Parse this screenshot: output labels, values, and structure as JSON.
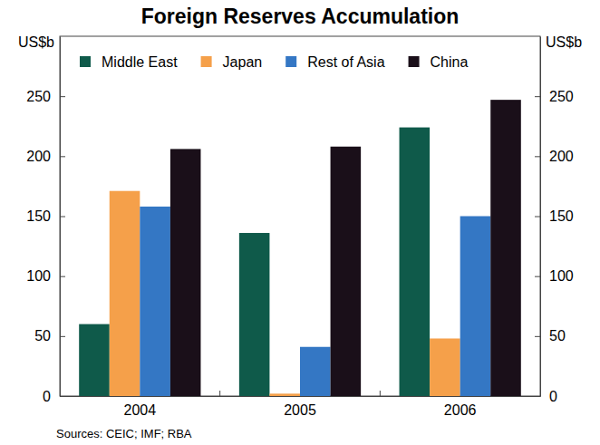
{
  "chart_data": {
    "type": "bar",
    "title": "Foreign Reserves Accumulation",
    "ylabel": "US$b",
    "y2label": "US$b",
    "source": "Sources: CEIC; IMF; RBA",
    "categories": [
      "2004",
      "2005",
      "2006"
    ],
    "series": [
      {
        "name": "Middle East",
        "color": "#0f5a4a",
        "values": [
          60,
          136,
          224
        ]
      },
      {
        "name": "Japan",
        "color": "#f5a04a",
        "values": [
          171,
          2,
          48
        ]
      },
      {
        "name": "Rest of Asia",
        "color": "#3477c4",
        "values": [
          158,
          41,
          150
        ]
      },
      {
        "name": "China",
        "color": "#1a0f19",
        "values": [
          206,
          208,
          247
        ]
      }
    ],
    "ylim": [
      0,
      300
    ],
    "yticks": [
      0,
      50,
      100,
      150,
      200,
      250
    ],
    "y2lim": [
      0,
      300
    ],
    "y2ticks": [
      0,
      50,
      100,
      150,
      200,
      250
    ],
    "grid": false,
    "legend": "top"
  }
}
